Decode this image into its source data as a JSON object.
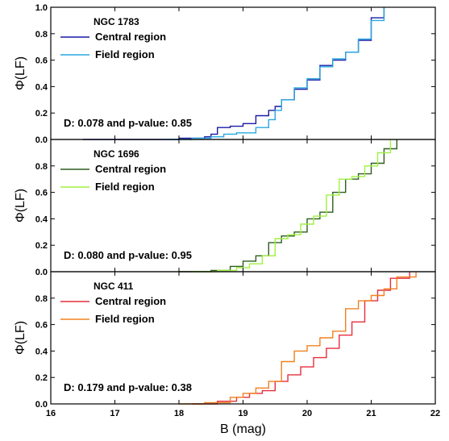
{
  "chart_data": {
    "type": "line",
    "subtype": "cumulative-distribution",
    "shared_x": {
      "label": "B (mag)",
      "range": [
        16,
        22
      ],
      "ticks": [
        16,
        17,
        18,
        19,
        20,
        21,
        22
      ]
    },
    "grid": false,
    "panels": [
      {
        "title": "NGC 1783",
        "ylabel": "Φ(LF)",
        "ylim": [
          0,
          1
        ],
        "yticks": [
          0.0,
          0.2,
          0.4,
          0.6,
          0.8,
          1.0
        ],
        "annotation": "D: 0.078 and p-value: 0.85",
        "legend_position": "top-left",
        "series": [
          {
            "name": "Central region",
            "color": "#1a1aa6",
            "x": [
              16.5,
              18.0,
              18.4,
              18.5,
              18.6,
              18.8,
              19.0,
              19.2,
              19.4,
              19.5,
              19.6,
              19.8,
              20.0,
              20.2,
              20.4,
              20.6,
              20.8,
              21.0,
              21.2
            ],
            "y": [
              0.0,
              0.01,
              0.02,
              0.04,
              0.09,
              0.1,
              0.12,
              0.18,
              0.22,
              0.25,
              0.3,
              0.38,
              0.45,
              0.56,
              0.6,
              0.66,
              0.75,
              0.92,
              1.0
            ]
          },
          {
            "name": "Field region",
            "color": "#29a8e0",
            "x": [
              17.8,
              18.2,
              18.5,
              18.7,
              18.9,
              19.2,
              19.4,
              19.5,
              19.6,
              19.8,
              20.0,
              20.2,
              20.4,
              20.6,
              20.8,
              21.0,
              21.2
            ],
            "y": [
              0.0,
              0.01,
              0.02,
              0.04,
              0.05,
              0.09,
              0.15,
              0.22,
              0.3,
              0.39,
              0.46,
              0.55,
              0.61,
              0.66,
              0.76,
              0.9,
              1.0
            ]
          }
        ]
      },
      {
        "title": "NGC 1696",
        "ylabel": "Φ(LF)",
        "ylim": [
          0,
          1
        ],
        "yticks": [
          0.0,
          0.2,
          0.4,
          0.6,
          0.8
        ],
        "annotation": "D: 0.080 and p-value: 0.95",
        "legend_position": "top-left",
        "series": [
          {
            "name": "Central region",
            "color": "#2e5e1e",
            "x": [
              18.0,
              18.5,
              18.8,
              19.0,
              19.2,
              19.4,
              19.6,
              19.8,
              20.0,
              20.2,
              20.4,
              20.6,
              20.8,
              21.0,
              21.2,
              21.4
            ],
            "y": [
              0.0,
              0.01,
              0.04,
              0.08,
              0.12,
              0.22,
              0.27,
              0.3,
              0.4,
              0.45,
              0.6,
              0.7,
              0.74,
              0.82,
              0.93,
              1.0
            ]
          },
          {
            "name": "Field region",
            "color": "#a0f040",
            "x": [
              18.2,
              18.6,
              18.9,
              19.1,
              19.3,
              19.5,
              19.7,
              19.9,
              20.1,
              20.3,
              20.5,
              20.7,
              20.9,
              21.1,
              21.3
            ],
            "y": [
              0.0,
              0.01,
              0.03,
              0.06,
              0.12,
              0.25,
              0.28,
              0.36,
              0.42,
              0.58,
              0.7,
              0.72,
              0.8,
              0.9,
              1.0
            ]
          }
        ]
      },
      {
        "title": "NGC 411",
        "ylabel": "Φ(LF)",
        "ylim": [
          0,
          1
        ],
        "yticks": [
          0.0,
          0.2,
          0.4,
          0.6,
          0.8
        ],
        "annotation": "D: 0.179 and p-value: 0.38",
        "legend_position": "top-left",
        "series": [
          {
            "name": "Central region",
            "color": "#e62e3c",
            "x": [
              18.2,
              18.6,
              18.9,
              19.1,
              19.3,
              19.5,
              19.7,
              19.9,
              20.1,
              20.3,
              20.5,
              20.7,
              20.9,
              21.1,
              21.3,
              21.6
            ],
            "y": [
              0.0,
              0.02,
              0.05,
              0.08,
              0.1,
              0.17,
              0.22,
              0.28,
              0.35,
              0.42,
              0.52,
              0.62,
              0.78,
              0.86,
              0.95,
              1.0
            ]
          },
          {
            "name": "Field region",
            "color": "#f08020",
            "x": [
              18.0,
              18.4,
              18.8,
              19.0,
              19.2,
              19.4,
              19.6,
              19.8,
              20.0,
              20.2,
              20.4,
              20.6,
              20.8,
              21.0,
              21.2,
              21.4,
              21.7
            ],
            "y": [
              0.0,
              0.01,
              0.05,
              0.08,
              0.12,
              0.17,
              0.32,
              0.4,
              0.44,
              0.5,
              0.55,
              0.72,
              0.78,
              0.82,
              0.87,
              0.96,
              1.0
            ]
          }
        ]
      }
    ]
  }
}
